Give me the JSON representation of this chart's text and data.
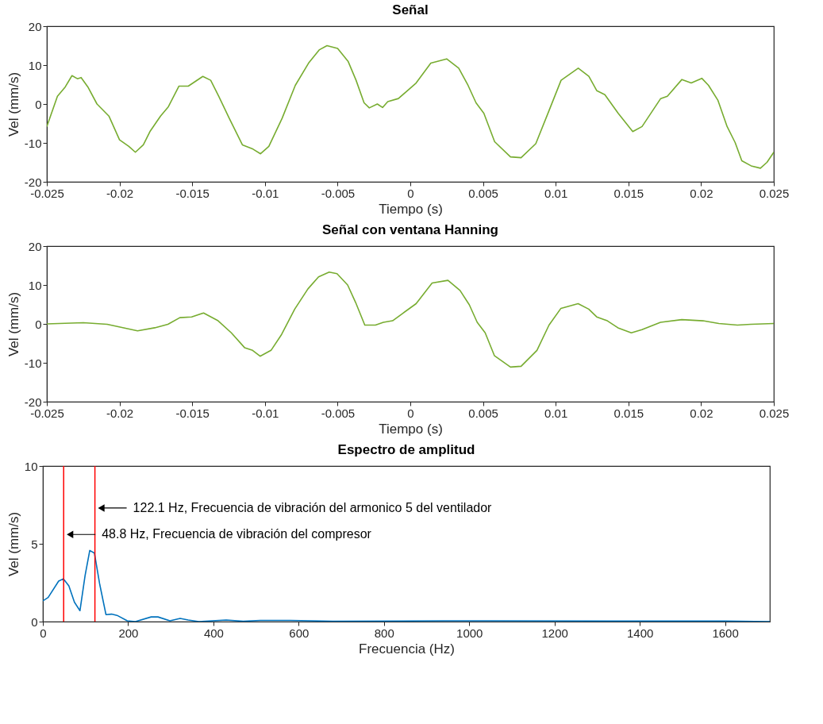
{
  "chart_data": [
    {
      "type": "line",
      "title": "Señal",
      "xlabel": "Tiempo (s)",
      "ylabel": "Vel (mm/s)",
      "xlim": [
        -0.025,
        0.025
      ],
      "xticks": [
        -0.025,
        -0.02,
        -0.015,
        -0.01,
        -0.005,
        0,
        0.005,
        0.01,
        0.015,
        0.02,
        0.025
      ],
      "ylim": [
        -20,
        20
      ],
      "yticks": [
        -20,
        -10,
        0,
        10,
        20
      ],
      "grid": false,
      "x": [
        -0.025,
        -0.02427,
        -0.02373,
        -0.02327,
        -0.0229,
        -0.02264,
        -0.02218,
        -0.02155,
        -0.02073,
        -0.02,
        -0.01936,
        -0.01891,
        -0.01836,
        -0.01791,
        -0.01718,
        -0.01664,
        -0.01591,
        -0.01527,
        -0.01427,
        -0.01373,
        -0.01318,
        -0.01245,
        -0.01155,
        -0.01082,
        -0.0103,
        -0.00973,
        -0.00882,
        -0.00791,
        -0.007,
        -0.00627,
        -0.00573,
        -0.005,
        -0.00427,
        -0.00373,
        -0.00318,
        -0.00282,
        -0.00227,
        -0.00191,
        -0.00155,
        -0.00082,
        -0.00027,
        0.0004,
        0.00141,
        0.0025,
        0.00333,
        0.00397,
        0.00452,
        0.00506,
        0.0058,
        0.00689,
        0.00762,
        0.00863,
        0.00954,
        0.01037,
        0.01155,
        0.01228,
        0.01283,
        0.01338,
        0.0143,
        0.0153,
        0.01594,
        0.01722,
        0.01768,
        0.01868,
        0.01932,
        0.02005,
        0.02051,
        0.02115,
        0.02179,
        0.02234,
        0.0228,
        0.02344,
        0.02408,
        0.02453,
        0.025
      ],
      "series": [
        {
          "color": "#77ac30",
          "values": [
            -5.8,
            2.0,
            4.4,
            7.3,
            6.5,
            6.8,
            4.4,
            0,
            -3.1,
            -9.2,
            -10.9,
            -12.4,
            -10.5,
            -7.1,
            -3.1,
            -0.7,
            4.6,
            4.6,
            7.1,
            6.1,
            2.0,
            -3.7,
            -10.5,
            -11.6,
            -12.8,
            -10.9,
            -3.7,
            4.8,
            10.5,
            13.9,
            15.0,
            14.3,
            10.9,
            6.1,
            0.3,
            -1.0,
            0,
            -0.9,
            0.6,
            1.4,
            3.2,
            5.4,
            10.5,
            11.6,
            9.2,
            4.8,
            0.3,
            -2.4,
            -9.7,
            -13.6,
            -13.8,
            -10.2,
            -1.7,
            6.1,
            9.2,
            7.1,
            3.4,
            2.4,
            -2.4,
            -7.1,
            -5.8,
            1.4,
            2.0,
            6.3,
            5.4,
            6.6,
            4.8,
            1.0,
            -5.8,
            -9.9,
            -14.6,
            -15.9,
            -16.5,
            -15.0,
            -12.4
          ]
        }
      ]
    },
    {
      "type": "line",
      "title": "Señal con ventana Hanning",
      "xlabel": "Tiempo (s)",
      "ylabel": "Vel (mm/s)",
      "xlim": [
        -0.025,
        0.025
      ],
      "xticks": [
        -0.025,
        -0.02,
        -0.015,
        -0.01,
        -0.005,
        0,
        0.005,
        0.01,
        0.015,
        0.02,
        0.025
      ],
      "ylim": [
        -20,
        20
      ],
      "yticks": [
        -20,
        -10,
        0,
        10,
        20
      ],
      "grid": false,
      "x": [
        -0.025,
        -0.02249,
        -0.02085,
        -0.01876,
        -0.01758,
        -0.01667,
        -0.01585,
        -0.01504,
        -0.01422,
        -0.01322,
        -0.01231,
        -0.0114,
        -0.01085,
        -0.01033,
        -0.00958,
        -0.00885,
        -0.00795,
        -0.00704,
        -0.00631,
        -0.00558,
        -0.00504,
        -0.00431,
        -0.00376,
        -0.00313,
        -0.0024,
        -0.00185,
        -0.00122,
        -0.00049,
        0.0004,
        0.0015,
        0.00259,
        0.00342,
        0.00406,
        0.0046,
        0.00515,
        0.00579,
        0.00689,
        0.00762,
        0.00871,
        0.00954,
        0.01036,
        0.01154,
        0.01227,
        0.01282,
        0.01355,
        0.01428,
        0.0152,
        0.01593,
        0.01721,
        0.01867,
        0.02013,
        0.02122,
        0.0225,
        0.02342,
        0.025
      ],
      "series": [
        {
          "color": "#77ac30",
          "values": [
            0,
            0.3,
            -0.1,
            -1.8,
            -1.0,
            -0.1,
            1.6,
            1.8,
            2.8,
            0.8,
            -2.3,
            -6.1,
            -6.8,
            -8.3,
            -6.8,
            -2.7,
            3.8,
            9.0,
            12.1,
            13.3,
            12.9,
            10.0,
            5.5,
            -0.3,
            -0.3,
            0.4,
            0.8,
            2.8,
            5.2,
            10.5,
            11.2,
            8.6,
            4.9,
            0.4,
            -2.3,
            -8.2,
            -11.1,
            -10.9,
            -6.8,
            -0.3,
            4.0,
            5.2,
            3.8,
            1.8,
            0.8,
            -1.0,
            -2.3,
            -1.5,
            0.4,
            1.1,
            0.8,
            0.1,
            -0.3,
            -0.1,
            0.1
          ]
        }
      ]
    },
    {
      "type": "line",
      "title": "Espectro de amplitud",
      "xlabel": "Frecuencia (Hz)",
      "ylabel": "Vel (mm/s)",
      "xlim": [
        0,
        1705
      ],
      "xticks": [
        0,
        200,
        400,
        600,
        800,
        1000,
        1200,
        1400,
        1600
      ],
      "ylim": [
        0,
        10
      ],
      "yticks": [
        0,
        5,
        10
      ],
      "grid": false,
      "x": [
        0,
        12.4,
        37,
        48,
        61,
        74,
        87,
        99,
        110,
        121,
        133,
        148,
        161,
        174,
        198,
        217,
        254,
        270,
        298,
        322,
        341,
        366,
        430,
        470,
        510,
        580,
        680,
        940,
        1050,
        1600,
        1705
      ],
      "series": [
        {
          "color": "#0072bd",
          "values": [
            1.33,
            1.55,
            2.6,
            2.75,
            2.3,
            1.25,
            0.7,
            2.95,
            4.57,
            4.4,
            2.45,
            0.45,
            0.48,
            0.4,
            0.05,
            0,
            0.3,
            0.3,
            0.05,
            0.2,
            0.1,
            0,
            0.1,
            0.02,
            0.08,
            0.08,
            0.02,
            0.05,
            0.05,
            0.03,
            0
          ]
        }
      ],
      "ref_lines": [
        {
          "axis": "x",
          "value": 48.8,
          "color": "#ff0000"
        },
        {
          "axis": "x",
          "value": 122.1,
          "color": "#ff0000"
        }
      ],
      "annotations": [
        {
          "text": "122.1 Hz, Frecuencia de vibración del armonico 5 del ventilador",
          "x": 122.1,
          "y": 7.3
        },
        {
          "text": "48.8 Hz, Frecuencia de vibración del compresor",
          "x": 48.8,
          "y": 5.6
        }
      ]
    }
  ]
}
